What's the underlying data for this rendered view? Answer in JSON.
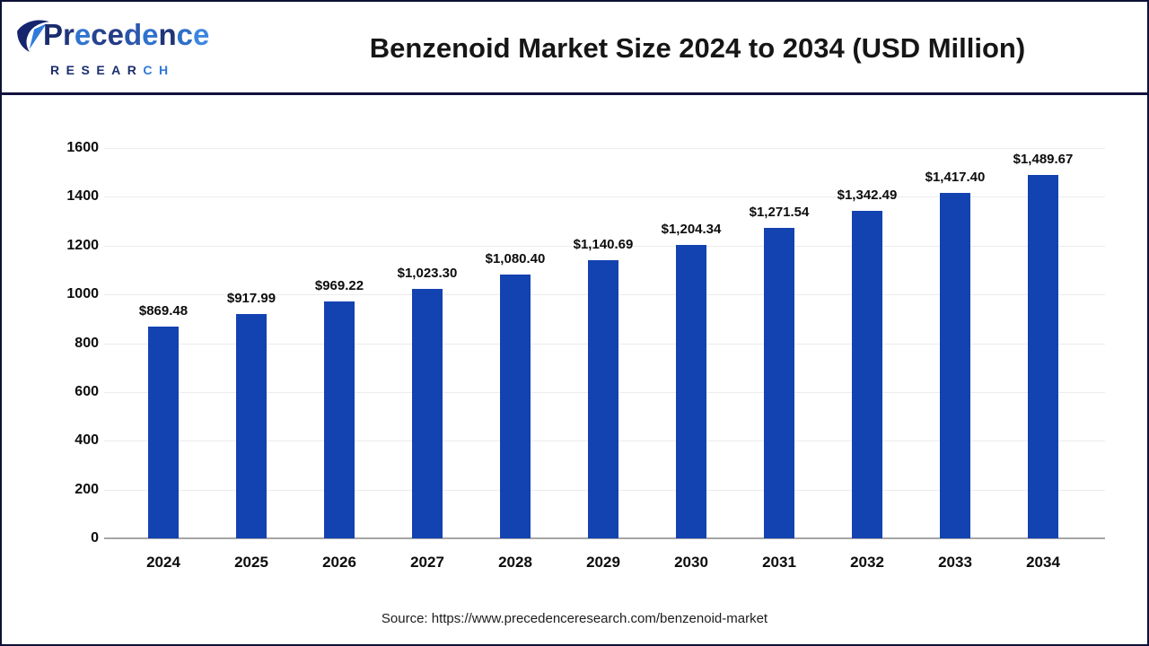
{
  "logo": {
    "brand": "Precedence",
    "brand_letter_colors": [
      "#1a2c6e",
      "#22357c",
      "#2f74d0",
      "#27428f",
      "#243c86",
      "#2b57ac",
      "#2f72cd",
      "#203478",
      "#2e6fc8",
      "#3c86e0"
    ],
    "subtitle": "RESEARCH",
    "subtitle_letter_colors": [
      "#1b2d6e",
      "#1b2d6e",
      "#1b2d6e",
      "#1b2d6e",
      "#1b2d6e",
      "#1b2d6e",
      "#2e7ad8",
      "#2e7ad8"
    ],
    "icon": "paper-plane-logo-icon",
    "icon_colors": {
      "dark": "#16246d",
      "light": "#2f7bdc"
    }
  },
  "source_text": "Source: https://www.precedenceresearch.com/benzenoid-market",
  "chart_data": {
    "type": "bar",
    "title": "Benzenoid Market Size 2024 to 2034 (USD Million)",
    "categories": [
      "2024",
      "2025",
      "2026",
      "2027",
      "2028",
      "2029",
      "2030",
      "2031",
      "2032",
      "2033",
      "2034"
    ],
    "values": [
      869.48,
      917.99,
      969.22,
      1023.3,
      1080.4,
      1140.69,
      1204.34,
      1271.54,
      1342.49,
      1417.4,
      1489.67
    ],
    "value_labels": [
      "$869.48",
      "$917.99",
      "$969.22",
      "$1,023.30",
      "$1,080.40",
      "$1,140.69",
      "$1,204.34",
      "$1,271.54",
      "$1,342.49",
      "$1,417.40",
      "$1,489.67"
    ],
    "xlabel": "",
    "ylabel": "",
    "ylim": [
      0,
      1600
    ],
    "ytick_step": 200,
    "ytick_labels": [
      "0",
      "200",
      "400",
      "600",
      "800",
      "1000",
      "1200",
      "1400",
      "1600"
    ],
    "grid": true,
    "legend_position": "none",
    "bar_color": "#1342b1",
    "gridline_color": "#ececec",
    "baseline_color": "#a6a6a6"
  }
}
